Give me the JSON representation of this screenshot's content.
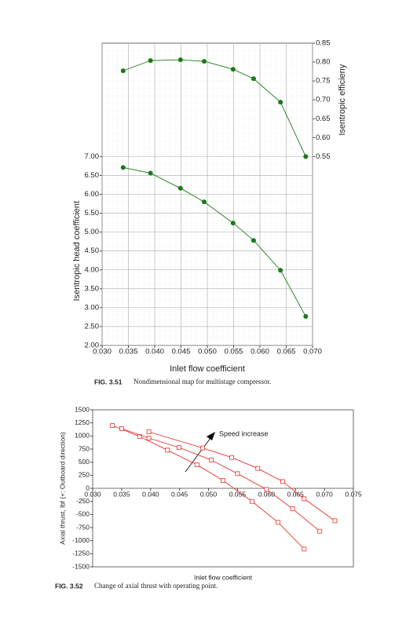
{
  "chart_data": [
    {
      "type": "line",
      "title": null,
      "x_label": "Inlet flow coefficient",
      "y_label": "Isentropic head coefficient",
      "y2_label": "Isentropic efficieny",
      "x": [
        0.034,
        0.0392,
        0.0449,
        0.0494,
        0.0549,
        0.0588,
        0.0639,
        0.0687
      ],
      "series": [
        {
          "name": "Isentropic efficiency",
          "color": "#1a7a1a",
          "axis": "y2",
          "values": [
            0.777,
            0.804,
            0.806,
            0.802,
            0.781,
            0.756,
            0.694,
            0.55
          ]
        },
        {
          "name": "Isentropic head coefficient",
          "color": "#1a7a1a",
          "values": [
            6.71,
            6.56,
            6.16,
            5.8,
            5.24,
            4.78,
            3.99,
            2.77
          ]
        }
      ],
      "marker": "circle",
      "xlim": [
        0.03,
        0.07
      ],
      "xticks": [
        {
          "value": 0.03,
          "label": "0.030"
        },
        {
          "value": 0.035,
          "label": "0.035"
        },
        {
          "value": 0.04,
          "label": "0.040"
        },
        {
          "value": 0.045,
          "label": "0.045"
        },
        {
          "value": 0.05,
          "label": "0.050"
        },
        {
          "value": 0.055,
          "label": "0.055"
        },
        {
          "value": 0.06,
          "label": "0.060"
        },
        {
          "value": 0.065,
          "label": "0.065"
        },
        {
          "value": 0.07,
          "label": "0.070"
        }
      ],
      "ylim": [
        2,
        10
      ],
      "yticks": [
        {
          "value": 2,
          "label": "2.00"
        },
        {
          "value": 2.5,
          "label": "2.50"
        },
        {
          "value": 3,
          "label": "3.00"
        },
        {
          "value": 3.5,
          "label": "3.50"
        },
        {
          "value": 4,
          "label": "4.00"
        },
        {
          "value": 4.5,
          "label": "4.50"
        },
        {
          "value": 5,
          "label": "5.00"
        },
        {
          "value": 5.5,
          "label": "5.50"
        },
        {
          "value": 6,
          "label": "6.00"
        },
        {
          "value": 6.5,
          "label": "6.50"
        },
        {
          "value": 7,
          "label": "7.00"
        }
      ],
      "y2lim": [
        0.05,
        0.85
      ],
      "y2ticks": [
        {
          "value": 0.55,
          "label": "0.55"
        },
        {
          "value": 0.6,
          "label": "0.60"
        },
        {
          "value": 0.65,
          "label": "0.65"
        },
        {
          "value": 0.7,
          "label": "0.70"
        },
        {
          "value": 0.75,
          "label": "0.75"
        },
        {
          "value": 0.8,
          "label": "0.80"
        },
        {
          "value": 0.85,
          "label": "0.85"
        }
      ],
      "grid": true
    },
    {
      "type": "line",
      "x_label": "Inlet flow coefficient",
      "y_label": "Axial thrust, lbf (+: Outboard direction)",
      "annotation": "Speed increase",
      "series": [
        {
          "name": null,
          "color": "#e8312a",
          "x": [
            0.0334,
            0.0381,
            0.0429,
            0.048,
            0.0525,
            0.0575,
            0.062,
            0.0665
          ],
          "values": [
            1200,
            990,
            730,
            450,
            150,
            -250,
            -650,
            -1160
          ]
        },
        {
          "name": null,
          "color": "#e8312a",
          "x": [
            0.035,
            0.0397,
            0.0449,
            0.0505,
            0.055,
            0.06,
            0.0645,
            0.0692
          ],
          "values": [
            1140,
            960,
            780,
            540,
            280,
            -20,
            -390,
            -820
          ]
        },
        {
          "name": null,
          "color": "#e8312a",
          "x": [
            0.0397,
            0.049,
            0.054,
            0.0585,
            0.0628,
            0.0665,
            0.0718
          ],
          "values": [
            1080,
            770,
            590,
            380,
            130,
            -200,
            -620
          ]
        }
      ],
      "marker": "square",
      "xlim": [
        0.03,
        0.075
      ],
      "xticks": [
        {
          "value": 0.03,
          "label": "0.030"
        },
        {
          "value": 0.035,
          "label": "0.035"
        },
        {
          "value": 0.04,
          "label": "0.040"
        },
        {
          "value": 0.045,
          "label": "0.045"
        },
        {
          "value": 0.05,
          "label": "0.050"
        },
        {
          "value": 0.055,
          "label": "0.055"
        },
        {
          "value": 0.06,
          "label": "0.060"
        },
        {
          "value": 0.065,
          "label": "0.065"
        },
        {
          "value": 0.07,
          "label": "0.070"
        },
        {
          "value": 0.075,
          "label": "0.075"
        }
      ],
      "ylim": [
        -1500,
        1500
      ],
      "yticks": [
        1500,
        1250,
        1000,
        750,
        500,
        250,
        0,
        -250,
        -500,
        -750,
        -1000,
        -1250,
        -1500
      ],
      "grid": false
    }
  ],
  "captions": [
    {
      "label": "FIG. 3.51",
      "text": "Nondimensional map for multistage compressor."
    },
    {
      "label": "FIG. 3.52",
      "text": "Change of axial thrust with operating point."
    }
  ]
}
